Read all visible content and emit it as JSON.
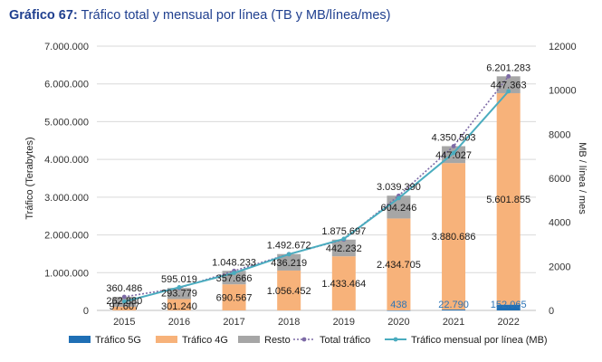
{
  "title": {
    "label": "Gráfico 67:",
    "text": "Tráfico total y mensual por línea (TB y MB/línea/mes)"
  },
  "colors": {
    "title": "#1f3f8f",
    "s5g": "#1f6fb5",
    "s4g": "#f7b27a",
    "resto": "#a6a6a6",
    "total": "#7d6aa6",
    "mensual": "#4aacbf",
    "grid": "#d9d9d9"
  },
  "chart_data": {
    "type": "bar",
    "stacked": true,
    "categories": [
      "2015",
      "2016",
      "2017",
      "2018",
      "2019",
      "2020",
      "2021",
      "2022"
    ],
    "ylabel": "Tráfico (Terabytes)",
    "y2label": "MB / línea / mes",
    "ylim": [
      0,
      7000000
    ],
    "y2lim": [
      0,
      12000
    ],
    "y_ticks": [
      "0",
      "1.000.000",
      "2.000.000",
      "3.000.000",
      "4.000.000",
      "5.000.000",
      "6.000.000",
      "7.000.000"
    ],
    "y2_ticks": [
      "0",
      "2000",
      "4000",
      "6000",
      "8000",
      "10000",
      "12000"
    ],
    "grid": true,
    "legend_position": "bottom",
    "series": [
      {
        "name": "Tráfico 5G",
        "kind": "bar",
        "axis": "left",
        "values": [
          0,
          0,
          0,
          0,
          0,
          438,
          22790,
          152065
        ],
        "labels": [
          "",
          "",
          "",
          "",
          "",
          "438",
          "22.790",
          "152.065"
        ]
      },
      {
        "name": "Tráfico 4G",
        "kind": "bar",
        "axis": "left",
        "values": [
          97607,
          301240,
          690567,
          1056452,
          1433464,
          2434705,
          3880686,
          5601855
        ],
        "labels": [
          "97.607",
          "301.240",
          "690.567",
          "1.056.452",
          "1.433.464",
          "2.434.705",
          "3.880.686",
          "5.601.855"
        ]
      },
      {
        "name": "Resto",
        "kind": "bar",
        "axis": "left",
        "values": [
          262880,
          293779,
          357666,
          436219,
          442232,
          604246,
          447027,
          447363
        ],
        "labels": [
          "262.880",
          "293.779",
          "357.666",
          "436.219",
          "442.232",
          "604.246",
          "447.027",
          "447.363"
        ]
      },
      {
        "name": "Total tráfico",
        "kind": "line",
        "style": "dotted",
        "axis": "left",
        "values": [
          360486,
          595019,
          1048233,
          1492672,
          1875697,
          3039390,
          4350503,
          6201283
        ],
        "labels": [
          "360.486",
          "595.019",
          "1.048.233",
          "1.492.672",
          "1.875.697",
          "3.039.390",
          "4.350.503",
          "6.201.283"
        ]
      },
      {
        "name": "Tráfico mensual por línea (MB)",
        "kind": "line",
        "style": "solid",
        "axis": "right",
        "values": [
          400,
          1050,
          1700,
          2550,
          3250,
          5100,
          7150,
          9950
        ],
        "labels": [
          "",
          "",
          "",
          "",
          "",
          "",
          "",
          ""
        ]
      }
    ]
  }
}
